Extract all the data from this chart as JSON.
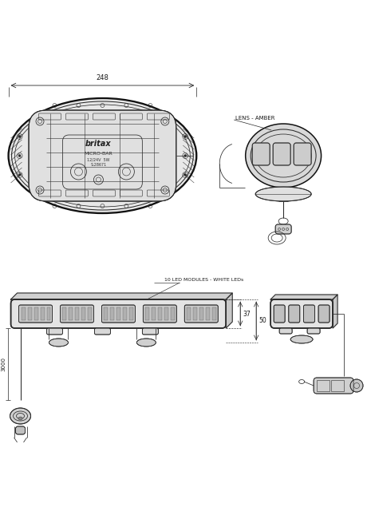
{
  "bg_color": "#ffffff",
  "lc": "#2a2a2a",
  "lw": 0.55,
  "tlw": 1.1,
  "mlw": 0.75,
  "tc": "#1a1a1a",
  "dim_248": "248",
  "dim_37": "37",
  "dim_50": "50",
  "dim_3000": "3000",
  "label_lens": "LENS - AMBER",
  "label_modules": "10 LED MODULES - WHITE LEDs",
  "label_britax": "britax",
  "label_microbar": "MICRO-BAR",
  "label_12v": "12/24V  5W",
  "label_partno": "S.28671"
}
